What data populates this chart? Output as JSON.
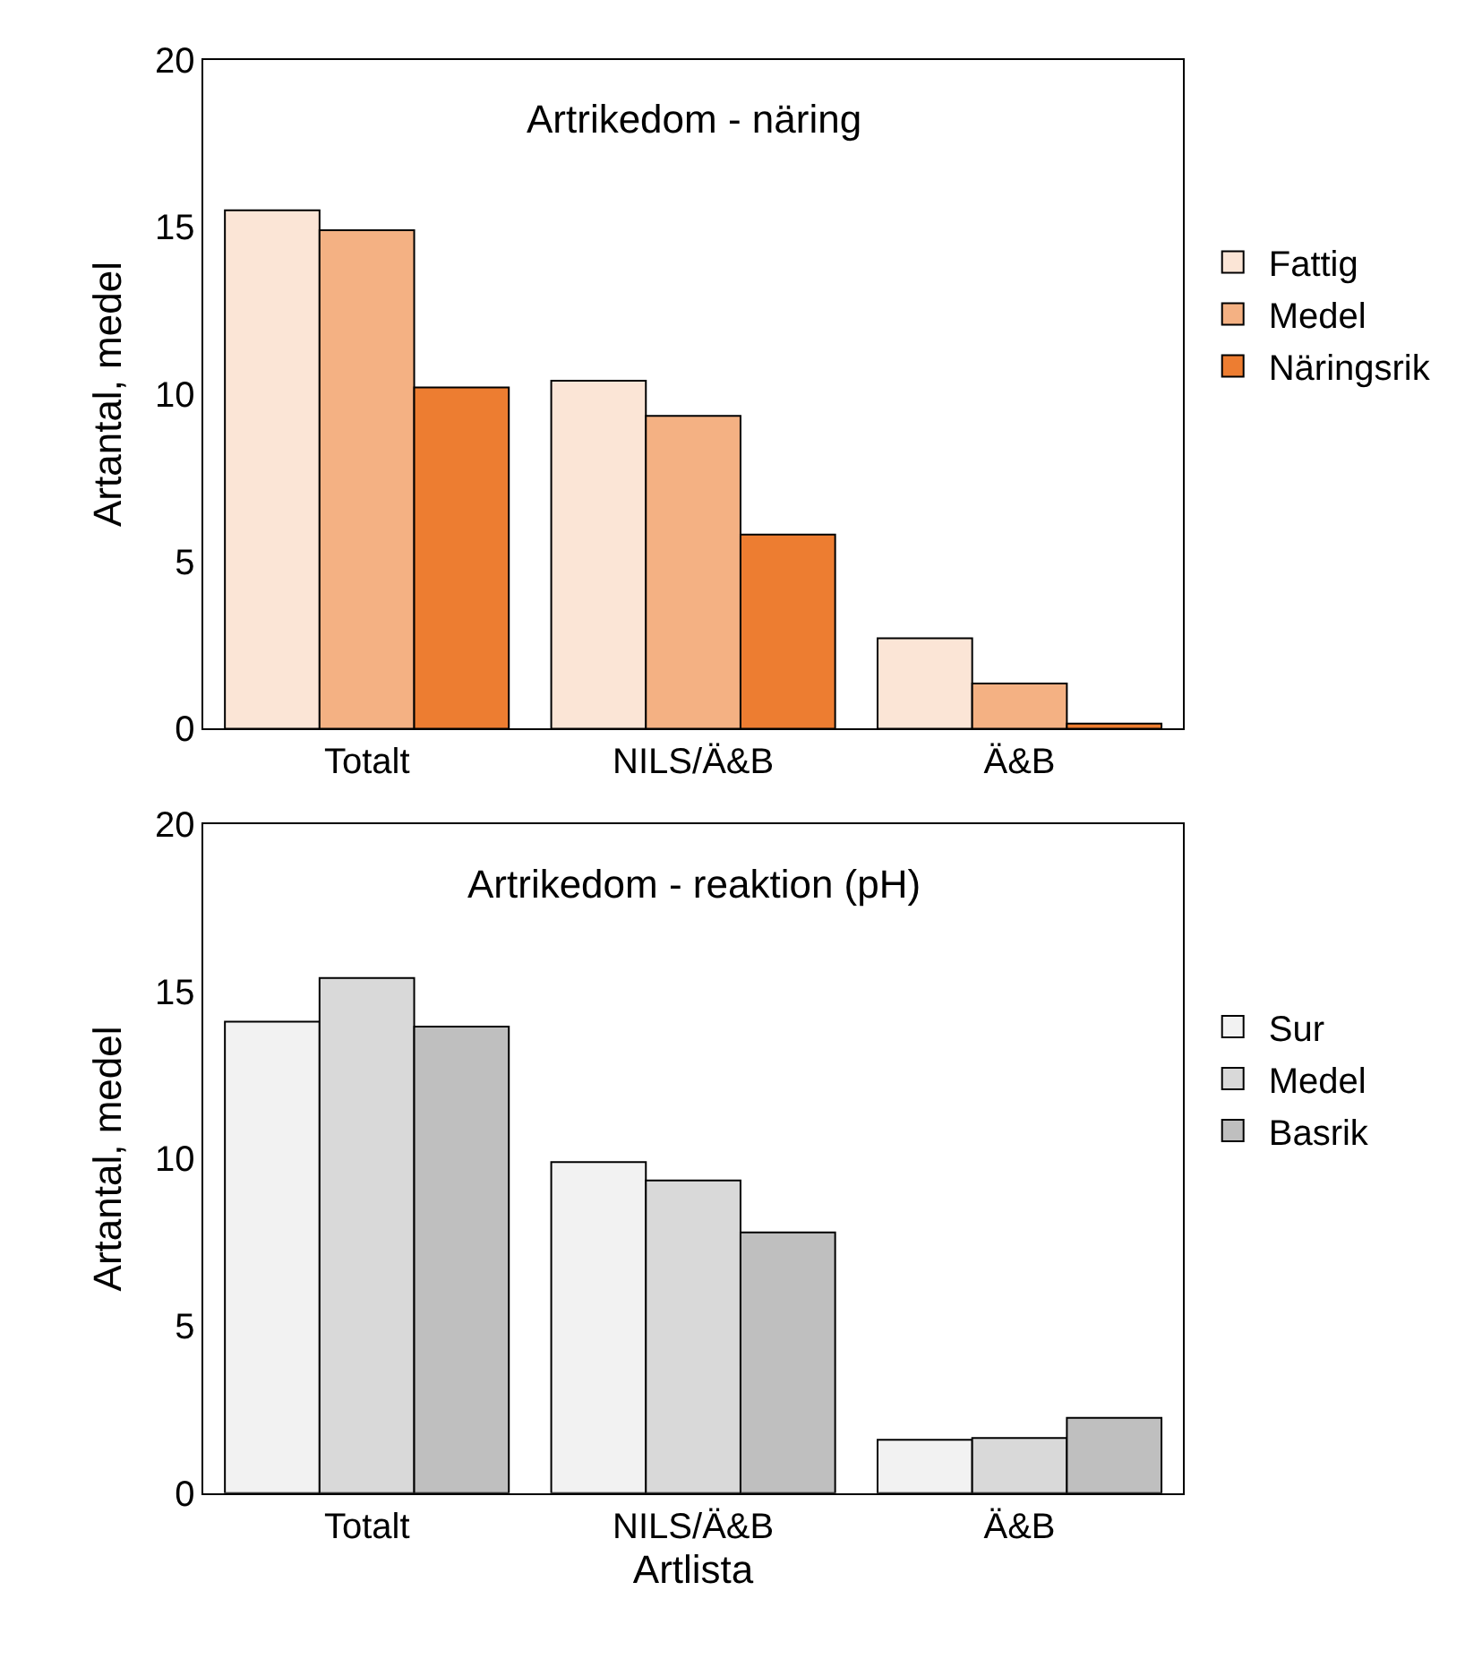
{
  "chart_data": [
    {
      "type": "bar",
      "title": "Artrikedom - näring",
      "ylabel": "Artantal, medel",
      "categories": [
        "Totalt",
        "NILS/Ä&B",
        "Ä&B"
      ],
      "series": [
        {
          "name": "Fattig",
          "color": "#fbe5d6",
          "values": [
            15.5,
            10.4,
            2.7
          ]
        },
        {
          "name": "Medel",
          "color": "#f4b183",
          "values": [
            14.9,
            9.35,
            1.35
          ]
        },
        {
          "name": "Näringsrik",
          "color": "#ed7d31",
          "values": [
            10.2,
            5.8,
            0.15
          ]
        }
      ],
      "ylim": [
        0,
        20
      ],
      "yticks": [
        0,
        5,
        10,
        15,
        20
      ],
      "grid": false,
      "legend": "right"
    },
    {
      "type": "bar",
      "title": "Artrikedom - reaktion (pH)",
      "xlabel": "Artlista",
      "ylabel": "Artantal, medel",
      "categories": [
        "Totalt",
        "NILS/Ä&B",
        "Ä&B"
      ],
      "series": [
        {
          "name": "Sur",
          "color": "#f2f2f2",
          "values": [
            14.1,
            9.9,
            1.6
          ]
        },
        {
          "name": "Medel",
          "color": "#d9d9d9",
          "values": [
            15.4,
            9.35,
            1.65
          ]
        },
        {
          "name": "Basrik",
          "color": "#bfbfbf",
          "values": [
            13.95,
            7.8,
            2.25
          ]
        }
      ],
      "ylim": [
        0,
        20
      ],
      "yticks": [
        0,
        5,
        10,
        15,
        20
      ],
      "grid": false,
      "legend": "right"
    }
  ]
}
